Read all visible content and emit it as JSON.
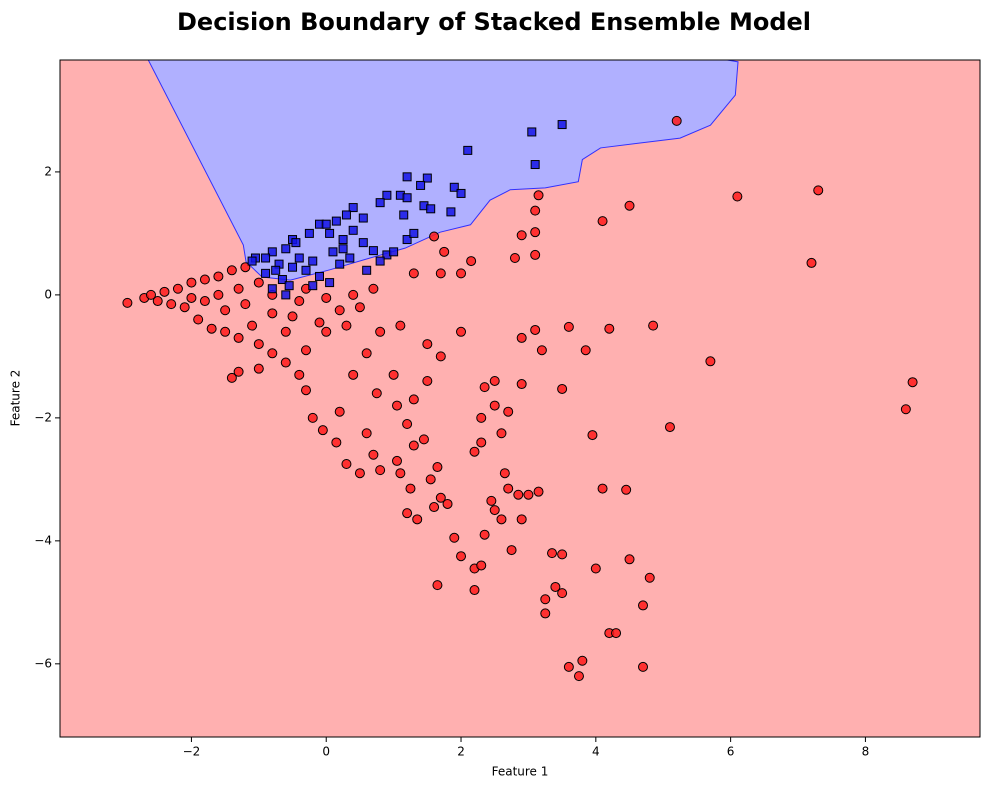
{
  "chart_data": {
    "type": "scatter",
    "title": "Decision Boundary of Stacked Ensemble Model",
    "x_label": "Feature 1",
    "y_label": "Feature 2",
    "xlim": [
      -3.95,
      9.7
    ],
    "ylim": [
      -7.19,
      3.82
    ],
    "xticks": [
      {
        "value": -2,
        "label": "−2"
      },
      0,
      2,
      4,
      6,
      8
    ],
    "yticks": [
      {
        "value": -6,
        "label": "−6"
      },
      {
        "value": -4,
        "label": "−4"
      },
      {
        "value": -2,
        "label": "−2"
      },
      0,
      2
    ],
    "background_color": "#ffb0b0",
    "decision_region": {
      "color": "#b0b0ff",
      "edge_color": "#3030ff",
      "x": [
        -2.64,
        5.95,
        6.11,
        6.07,
        5.7,
        5.25,
        4.07,
        3.8,
        3.74,
        3.25,
        2.73,
        2.43,
        2.14,
        1.69,
        1.17,
        0.65,
        0.06,
        -0.53,
        -0.95,
        -1.19,
        -1.23
      ],
      "y": [
        3.82,
        3.82,
        3.79,
        3.25,
        2.76,
        2.55,
        2.39,
        2.2,
        1.84,
        1.74,
        1.71,
        1.54,
        1.14,
        1.02,
        0.76,
        0.6,
        0.41,
        0.24,
        0.29,
        0.54,
        0.81
      ]
    },
    "series": [
      {
        "color": "#ff1a1a",
        "marker": "circle",
        "x": [
          5.2,
          6.1,
          7.3,
          7.2,
          4.5,
          4.1,
          3.15,
          3.1,
          2.9,
          3.1,
          3.1,
          2.8,
          2.15,
          1.75,
          1.6,
          2.0,
          1.7,
          1.3,
          8.7,
          8.6,
          5.7,
          5.1,
          4.85,
          4.2,
          3.85,
          3.6,
          3.5,
          3.1,
          3.2,
          2.9,
          2.9,
          2.5,
          2.35,
          2.5,
          2.3,
          2.7,
          2.6,
          2.2,
          2.3,
          3.95,
          4.1,
          4.45,
          4.5,
          4.8,
          4.7,
          4.2,
          4.3,
          4.7,
          3.8,
          3.75,
          3.6,
          3.5,
          3.4,
          3.25,
          3.25,
          3.5,
          3.35,
          4.0,
          3.15,
          3.0,
          2.85,
          2.65,
          2.7,
          2.5,
          2.45,
          2.6,
          2.9,
          2.35,
          2.2,
          2.3,
          2.2,
          2.75,
          1.9,
          2.0,
          1.65,
          1.8,
          1.6,
          1.7,
          1.65,
          1.55,
          1.25,
          1.35,
          1.2,
          1.1,
          1.05,
          1.3,
          1.45,
          1.2,
          1.05,
          1.3,
          1.5,
          1.7,
          2.0,
          1.5,
          1.0,
          0.75,
          0.6,
          0.7,
          0.8,
          0.5,
          0.3,
          0.15,
          -0.05,
          -0.2,
          -0.3,
          -0.4,
          0.2,
          0.4,
          0.6,
          0.8,
          1.1,
          0.3,
          0.0,
          -0.3,
          -0.6,
          -0.8,
          -1.0,
          -1.3,
          -1.4,
          -0.5,
          -0.8,
          -1.1,
          -1.3,
          -1.5,
          -1.7,
          -1.9,
          -2.1,
          -2.3,
          -2.5,
          -2.7,
          -2.95,
          -2.6,
          -2.4,
          -2.2,
          -2.0,
          -1.8,
          -1.6,
          -1.4,
          -1.2,
          -1.0,
          -0.8,
          -0.4,
          0.0,
          0.4,
          0.7,
          0.5,
          -1.6,
          -1.8,
          -2.0,
          -1.5,
          -1.2,
          -1.3,
          -0.3,
          0.2,
          -0.1,
          -0.6,
          -1.0
        ],
        "y": [
          2.83,
          1.6,
          1.7,
          0.52,
          1.45,
          1.2,
          1.62,
          1.37,
          0.97,
          1.02,
          0.65,
          0.6,
          0.55,
          0.7,
          0.95,
          0.35,
          0.35,
          0.35,
          -1.42,
          -1.86,
          -1.08,
          -2.15,
          -0.5,
          -0.55,
          -0.9,
          -0.52,
          -1.53,
          -0.57,
          -0.9,
          -0.7,
          -1.45,
          -1.4,
          -1.5,
          -1.8,
          -2.0,
          -1.9,
          -2.25,
          -2.55,
          -2.4,
          -2.28,
          -3.15,
          -3.17,
          -4.3,
          -4.6,
          -5.05,
          -5.5,
          -5.5,
          -6.05,
          -5.95,
          -6.2,
          -6.05,
          -4.85,
          -4.75,
          -4.95,
          -5.18,
          -4.22,
          -4.2,
          -4.45,
          -3.2,
          -3.25,
          -3.25,
          -2.9,
          -3.15,
          -3.5,
          -3.35,
          -3.65,
          -3.65,
          -3.9,
          -4.45,
          -4.4,
          -4.8,
          -4.15,
          -3.95,
          -4.25,
          -4.72,
          -3.4,
          -3.45,
          -3.3,
          -2.8,
          -3.0,
          -3.15,
          -3.65,
          -3.55,
          -2.9,
          -2.7,
          -2.45,
          -2.35,
          -2.1,
          -1.8,
          -1.7,
          -1.4,
          -1.0,
          -0.6,
          -0.8,
          -1.3,
          -1.6,
          -2.25,
          -2.6,
          -2.85,
          -2.9,
          -2.75,
          -2.4,
          -2.2,
          -2.0,
          -1.55,
          -1.3,
          -1.9,
          -1.3,
          -0.95,
          -0.6,
          -0.5,
          -0.5,
          -0.6,
          -0.9,
          -1.1,
          -0.95,
          -1.2,
          -1.25,
          -1.35,
          -0.35,
          -0.3,
          -0.5,
          -0.7,
          -0.6,
          -0.55,
          -0.4,
          -0.2,
          -0.15,
          -0.1,
          -0.05,
          -0.13,
          0.0,
          0.05,
          0.1,
          0.2,
          0.25,
          0.3,
          0.4,
          0.45,
          0.2,
          0.0,
          -0.1,
          -0.05,
          0.0,
          0.1,
          -0.2,
          0.0,
          -0.1,
          -0.05,
          -0.25,
          -0.15,
          0.1,
          0.1,
          -0.25,
          -0.45,
          -0.6,
          -0.8
        ]
      },
      {
        "color": "#1414e6",
        "marker": "square",
        "x": [
          3.05,
          3.5,
          2.1,
          3.1,
          1.2,
          1.5,
          1.4,
          0.9,
          1.1,
          1.2,
          0.8,
          1.45,
          1.55,
          1.9,
          2.0,
          1.85,
          1.15,
          0.4,
          0.3,
          0.15,
          0.55,
          0.4,
          0.25,
          -0.1,
          0.0,
          -0.25,
          -0.5,
          -0.45,
          -0.6,
          -0.8,
          -0.9,
          -1.05,
          -1.1,
          -0.7,
          -0.5,
          -0.3,
          -0.1,
          0.05,
          0.2,
          0.35,
          0.05,
          0.25,
          0.7,
          0.9,
          0.8,
          1.2,
          1.3,
          -0.65,
          -0.8,
          -0.6,
          -0.9,
          -0.4,
          -0.2,
          0.55,
          0.1,
          1.0,
          0.6,
          -0.75,
          -0.55,
          -0.2
        ],
        "y": [
          2.65,
          2.77,
          2.35,
          2.12,
          1.92,
          1.9,
          1.78,
          1.62,
          1.62,
          1.58,
          1.5,
          1.45,
          1.4,
          1.75,
          1.65,
          1.35,
          1.3,
          1.42,
          1.3,
          1.2,
          1.25,
          1.05,
          0.9,
          1.15,
          1.15,
          1.0,
          0.9,
          0.85,
          0.75,
          0.7,
          0.6,
          0.6,
          0.55,
          0.5,
          0.45,
          0.4,
          0.3,
          0.2,
          0.5,
          0.6,
          1.0,
          0.75,
          0.72,
          0.65,
          0.55,
          0.9,
          1.0,
          0.25,
          0.1,
          0.0,
          0.35,
          0.6,
          0.55,
          0.85,
          0.7,
          0.7,
          0.4,
          0.4,
          0.15,
          0.15
        ]
      }
    ]
  }
}
